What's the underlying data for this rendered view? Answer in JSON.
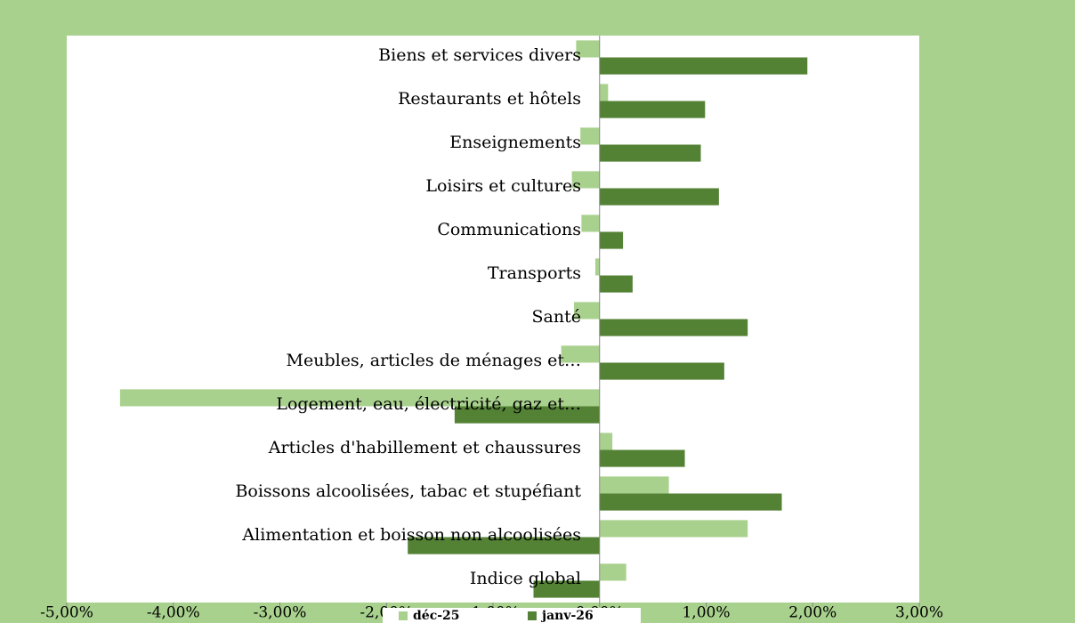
{
  "chart_data": {
    "type": "hbar",
    "categories": [
      "Biens et services divers",
      "Restaurants et hôtels",
      "Enseignements",
      "Loisirs et cultures",
      "Communications",
      "Transports",
      "Santé",
      "Meubles, articles de ménages et…",
      "Logement, eau, électricité, gaz et…",
      "Articles d'habillement et chaussures",
      "Boissons alcoolisées, tabac et stupéfiant",
      "Alimentation et boisson non alcoolisées",
      "Indice global"
    ],
    "series": [
      {
        "name": "déc-25",
        "color": "#a9d18e",
        "values": [
          -0.22,
          0.08,
          -0.18,
          -0.26,
          -0.17,
          -0.04,
          -0.24,
          -0.36,
          -4.5,
          0.12,
          0.65,
          1.39,
          0.25
        ]
      },
      {
        "name": "janv-26",
        "color": "#548235",
        "values": [
          1.95,
          0.99,
          0.95,
          1.12,
          0.22,
          0.31,
          1.39,
          1.17,
          -1.36,
          0.8,
          1.71,
          -1.8,
          -0.62
        ]
      }
    ],
    "xlim": [
      -5,
      3
    ],
    "xticks": [
      {
        "value": -5,
        "label": "-5,00%"
      },
      {
        "value": -4,
        "label": "-4,00%"
      },
      {
        "value": -3,
        "label": "-3,00%"
      },
      {
        "value": -2,
        "label": "-2,00%"
      },
      {
        "value": -1,
        "label": "-1,00%"
      },
      {
        "value": 0,
        "label": "0,00%"
      },
      {
        "value": 1,
        "label": "1,00%"
      },
      {
        "value": 2,
        "label": "2,00%"
      },
      {
        "value": 3,
        "label": "3,00%"
      }
    ],
    "legend": "bottom"
  }
}
